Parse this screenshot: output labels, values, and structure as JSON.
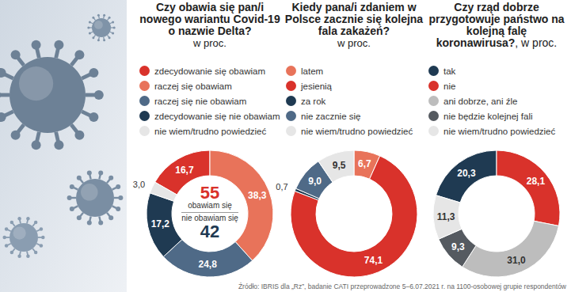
{
  "chart_data": [
    {
      "type": "pie",
      "title": "Czy obawia się pan/i nowego wariantu Covid-19 o nazwie Delta?",
      "subtitle": "w proc.",
      "categories": [
        "zdecydowanie się obawiam",
        "raczej się obawiam",
        "raczej się nie obawiam",
        "zdecydowanie się nie obawiam",
        "nie wiem/trudno powiedzieć"
      ],
      "values": [
        16.7,
        38.3,
        24.8,
        17.2,
        3.0
      ],
      "value_labels": [
        "16,7",
        "38,3",
        "24,8",
        "17,2",
        "3,0"
      ],
      "colors": [
        "#d9322b",
        "#e8735a",
        "#4f6a87",
        "#1f3a52",
        "#e6e6e6"
      ],
      "data_labels": true,
      "legend": "top",
      "center_labels": [
        {
          "value": 55,
          "text": "obawiam się",
          "color": "#d9322b"
        },
        {
          "value": 42,
          "text": "nie obawiam się",
          "color": "#1f3a52"
        }
      ]
    },
    {
      "type": "pie",
      "title": "Kiedy pana/i zdaniem w Polsce zacznie się kolejna fala zakażeń?",
      "subtitle": "w proc.",
      "categories": [
        "latem",
        "jesienią",
        "za rok",
        "nie zacznie się",
        "nie wiem/trudno powiedzieć"
      ],
      "values": [
        6.7,
        74.1,
        0.7,
        9.0,
        9.5
      ],
      "value_labels": [
        "6,7",
        "74,1",
        "0,7",
        "9,0",
        "9,5"
      ],
      "colors": [
        "#e8735a",
        "#d9322b",
        "#1f3a52",
        "#4f6a87",
        "#e6e6e6"
      ],
      "data_labels": true,
      "legend": "top"
    },
    {
      "type": "pie",
      "title": "Czy rząd dobrze przygotowuje państwo na kolejną falę koronawirusa?",
      "subtitle": ", w proc.",
      "categories": [
        "tak",
        "nie",
        "ani dobrze, ani źle",
        "nie będzie kolejnej fali",
        "nie wiem/trudno powiedzieć"
      ],
      "values": [
        20.3,
        28.1,
        31.0,
        9.3,
        11.3
      ],
      "value_labels": [
        "20,3",
        "28,1",
        "31,0",
        "9,3",
        "11,3"
      ],
      "colors": [
        "#1f3a52",
        "#d9322b",
        "#bdbdbd",
        "#555a60",
        "#e6e6e6"
      ],
      "data_labels": true,
      "legend": "top"
    }
  ],
  "source": "Źródło: IBRIS dla „Rz”, badanie CATI przeprowadzone 5–6.07.2021 r. na 1100-osobowej grupie respondentów"
}
